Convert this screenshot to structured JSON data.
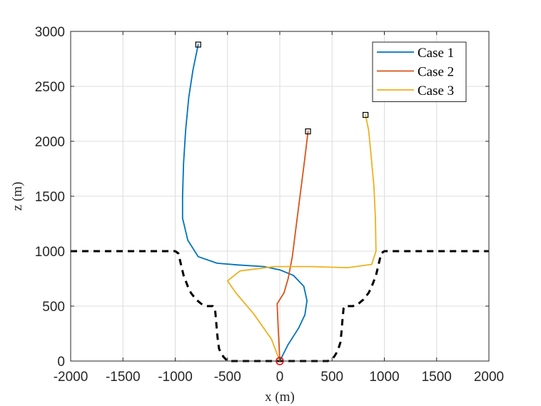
{
  "chart_data": {
    "type": "line",
    "title": "",
    "xlabel": "x (m)",
    "ylabel": "z (m)",
    "xlim": [
      -2000,
      2000
    ],
    "ylim": [
      0,
      3000
    ],
    "xticks": [
      -2000,
      -1500,
      -1000,
      -500,
      0,
      500,
      1000,
      1500,
      2000
    ],
    "yticks": [
      0,
      500,
      1000,
      1500,
      2000,
      2500,
      3000
    ],
    "xtick_labels": [
      "-2000",
      "-1500",
      "-1000",
      "-500",
      "0",
      "500",
      "1000",
      "1500",
      "2000"
    ],
    "ytick_labels": [
      "0",
      "500",
      "1000",
      "1500",
      "2000",
      "2500",
      "3000"
    ],
    "grid": true,
    "legend_position": "top-right",
    "series": [
      {
        "name": "Case 1",
        "color": "#0072BD",
        "x": [
          0,
          80,
          180,
          240,
          260,
          230,
          130,
          0,
          -150,
          -400,
          -600,
          -780,
          -880,
          -930,
          -930,
          -920,
          -900,
          -870,
          -830,
          -780
        ],
        "y": [
          0,
          150,
          300,
          420,
          550,
          680,
          780,
          830,
          860,
          875,
          890,
          950,
          1100,
          1300,
          1500,
          1800,
          2100,
          2400,
          2650,
          2880
        ]
      },
      {
        "name": "Case 2",
        "color": "#D95319",
        "x": [
          0,
          -5,
          -15,
          -25,
          0,
          40,
          80,
          120,
          160,
          200,
          240,
          270
        ],
        "y": [
          0,
          100,
          300,
          520,
          560,
          620,
          750,
          950,
          1250,
          1550,
          1850,
          2090
        ]
      },
      {
        "name": "Case 3",
        "color": "#EDB120",
        "x": [
          0,
          -80,
          -250,
          -420,
          -500,
          -380,
          -50,
          300,
          650,
          880,
          920,
          915,
          900,
          870,
          850,
          820
        ],
        "y": [
          0,
          200,
          430,
          620,
          730,
          820,
          860,
          860,
          850,
          880,
          1000,
          1300,
          1600,
          1900,
          2100,
          2240
        ]
      }
    ],
    "terrain": {
      "style": "black dashed",
      "x": [
        -2000,
        -1000,
        -970,
        -950,
        -920,
        -880,
        -850,
        -800,
        -750,
        -720,
        -700,
        -640,
        -620,
        -610,
        -600,
        -590,
        -580,
        -560,
        -540,
        -520,
        -500,
        -420,
        -400,
        -200,
        0,
        200,
        300,
        400,
        460,
        500,
        520,
        540,
        560,
        580,
        590,
        600,
        610,
        620,
        640,
        700,
        720,
        750,
        800,
        850,
        880,
        920,
        950,
        970,
        1000,
        2000
      ],
      "y": [
        1000,
        1000,
        980,
        900,
        780,
        680,
        620,
        560,
        520,
        510,
        500,
        500,
        480,
        380,
        260,
        170,
        110,
        70,
        40,
        20,
        0,
        0,
        0,
        0,
        0,
        0,
        0,
        0,
        0,
        20,
        40,
        70,
        110,
        170,
        260,
        380,
        480,
        500,
        500,
        500,
        510,
        520,
        560,
        620,
        680,
        780,
        900,
        980,
        1000,
        1000
      ]
    },
    "start_marker": {
      "x": 0,
      "y": 0,
      "shape": "circle",
      "color": "#ff0000"
    },
    "end_markers": [
      {
        "x": -780,
        "y": 2880,
        "shape": "square"
      },
      {
        "x": 270,
        "y": 2090,
        "shape": "square"
      },
      {
        "x": 820,
        "y": 2240,
        "shape": "square"
      }
    ]
  }
}
